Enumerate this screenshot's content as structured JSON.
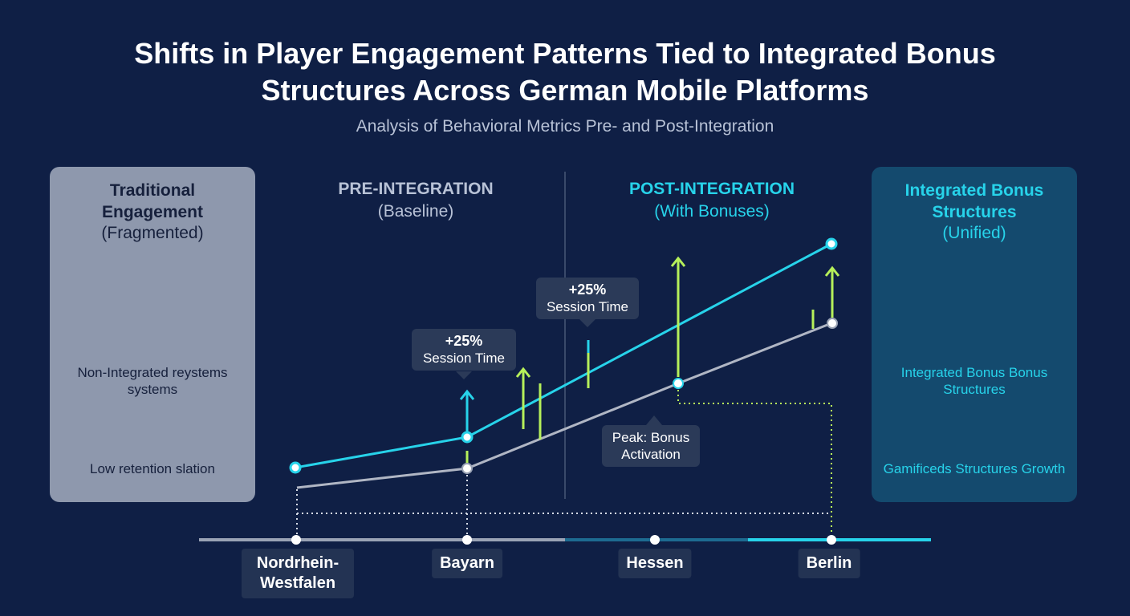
{
  "header": {
    "title": "Shifts in Player Engagement Patterns Tied to Integrated Bonus Structures Across German Mobile Platforms",
    "subtitle": "Analysis of Behavioral Metrics Pre- and Post-Integration"
  },
  "left_panel": {
    "title": "Traditional Engagement",
    "subtitle": "(Fragmented)",
    "items": [
      "Non-Integrated reystems systems",
      "Low retention slation"
    ]
  },
  "phases": [
    {
      "title": "PRE-INTEGRATION",
      "subtitle": "(Baseline)"
    },
    {
      "title": "POST-INTEGRATION",
      "subtitle": "(With Bonuses)"
    }
  ],
  "right_panel": {
    "title": "Integrated Bonus Structures",
    "subtitle": "(Unified)",
    "items": [
      "Integrated Bonus Bonus Structures",
      "Gamificeds Structures Growth"
    ]
  },
  "callouts": [
    {
      "value": "+25%",
      "label": "Session Time"
    },
    {
      "value": "+25%",
      "label": "Session Time"
    },
    {
      "label": "Peak: Bonus Activation"
    }
  ],
  "regions": [
    "Nordrhein-Westfalen",
    "Bayarn",
    "Hessen",
    "Berlin"
  ]
}
